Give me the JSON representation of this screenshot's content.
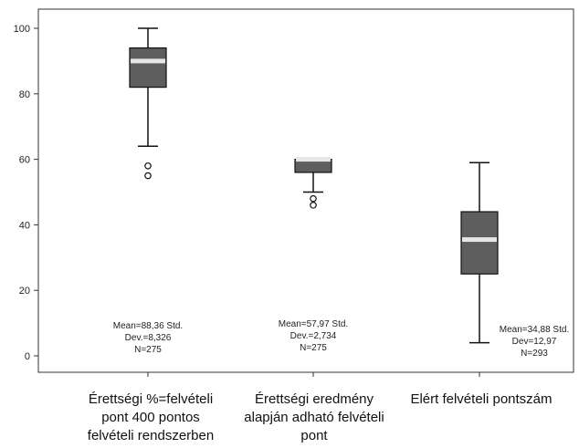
{
  "chart_data": {
    "type": "boxplot",
    "title": "",
    "xlabel": "",
    "ylabel": "",
    "ylim": [
      -5,
      105
    ],
    "yticks": [
      0,
      20,
      40,
      60,
      80,
      100
    ],
    "ytick_labels": [
      "0",
      "20",
      "40",
      "60",
      "80",
      "100"
    ],
    "grid": false,
    "colors": {
      "box": "#5e5e5e",
      "median": "#e6e6e6",
      "frame": "#333333",
      "background": "#ffffff"
    },
    "series": [
      {
        "label_lines": [
          "Érettségi %=felvételi",
          "pont 400 pontos",
          "felvételi rendszerben"
        ],
        "whisker_low": 64,
        "q1": 82,
        "median": 90,
        "q3": 94,
        "whisker_high": 100,
        "outliers": [
          58,
          55
        ],
        "annotation_lines": [
          "Mean=88,36 Std.",
          "Dev.=8,326",
          "N=275"
        ]
      },
      {
        "label_lines": [
          "Érettségi eredmény",
          "alapján adható felvételi",
          "pont"
        ],
        "whisker_low": 50,
        "q1": 56,
        "median": 60,
        "q3": 60,
        "whisker_high": 60,
        "outliers": [
          48,
          46
        ],
        "annotation_lines": [
          "Mean=57,97 Std.",
          "Dev.=2,734",
          "N=275"
        ]
      },
      {
        "label_lines": [
          "Elért felvételi pontszám"
        ],
        "whisker_low": 4,
        "q1": 25,
        "median": 35.5,
        "q3": 44,
        "whisker_high": 59,
        "outliers": [],
        "annotation_lines": [
          "Mean=34,88 Std.",
          "Dev=12,97",
          "N=293"
        ]
      }
    ]
  }
}
